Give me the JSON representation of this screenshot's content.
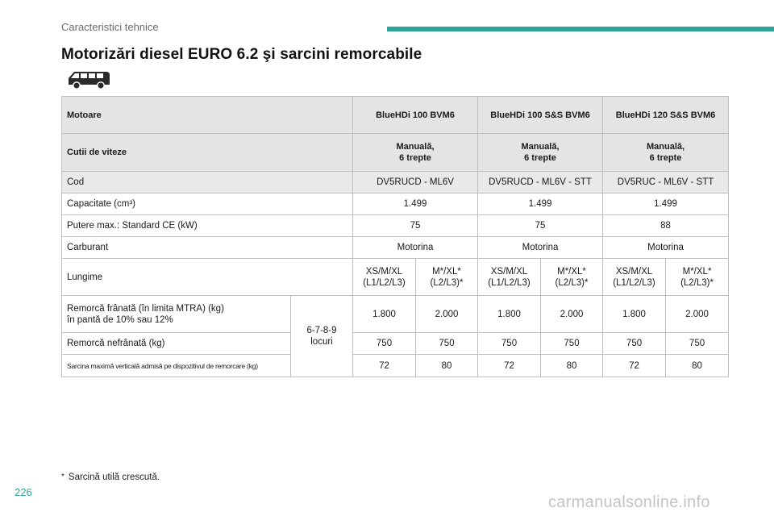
{
  "header": {
    "section": "Caracteristici tehnice",
    "accent_color": "#2fa598"
  },
  "title": "Motorizări diesel EURO 6.2 şi sarcini remorcabile",
  "vehicle_icon": "van-icon",
  "table": {
    "motoare_label": "Motoare",
    "engines": [
      "BlueHDi 100 BVM6",
      "BlueHDi 100 S&S BVM6",
      "BlueHDi 120 S&S BVM6"
    ],
    "gearbox_label": "Cutii de viteze",
    "gearbox": [
      {
        "line1": "Manuală,",
        "line2": "6 trepte"
      },
      {
        "line1": "Manuală,",
        "line2": "6 trepte"
      },
      {
        "line1": "Manuală,",
        "line2": "6 trepte"
      }
    ],
    "cod_label": "Cod",
    "cod": [
      "DV5RUCD - ML6V",
      "DV5RUCD - ML6V - STT",
      "DV5RUC - ML6V - STT"
    ],
    "capacity_label": "Capacitate (cm³)",
    "capacity": [
      "1.499",
      "1.499",
      "1.499"
    ],
    "power_label": "Putere max.: Standard CE (kW)",
    "power": [
      "75",
      "75",
      "88"
    ],
    "fuel_label": "Carburant",
    "fuel": [
      "Motorina",
      "Motorina",
      "Motorina"
    ],
    "length_label": "Lungime",
    "lengths": [
      {
        "line1": "XS/M/XL",
        "line2": "(L1/L2/L3)"
      },
      {
        "line1": "M*/XL*",
        "line2": "(L2/L3)*"
      },
      {
        "line1": "XS/M/XL",
        "line2": "(L1/L2/L3)"
      },
      {
        "line1": "M*/XL*",
        "line2": "(L2/L3)*"
      },
      {
        "line1": "XS/M/XL",
        "line2": "(L1/L2/L3)"
      },
      {
        "line1": "M*/XL*",
        "line2": "(L2/L3)*"
      }
    ],
    "seats": {
      "line1": "6-7-8-9",
      "line2": "locuri"
    },
    "braked_label_line1": "Remorcă frânată (în limita MTRA) (kg)",
    "braked_label_line2": "în pantă de 10% sau 12%",
    "braked": [
      "1.800",
      "2.000",
      "1.800",
      "2.000",
      "1.800",
      "2.000"
    ],
    "unbraked_label": "Remorcă nefrânată (kg)",
    "unbraked": [
      "750",
      "750",
      "750",
      "750",
      "750",
      "750"
    ],
    "vertical_label": "Sarcina maximă verticală admisă pe dispozitivul de remorcare (kg)",
    "vertical": [
      "72",
      "80",
      "72",
      "80",
      "72",
      "80"
    ]
  },
  "footnote": {
    "marker": "*",
    "text": "Sarcină utilă crescută."
  },
  "page_number": "226",
  "watermark": "carmanualsonline.info"
}
